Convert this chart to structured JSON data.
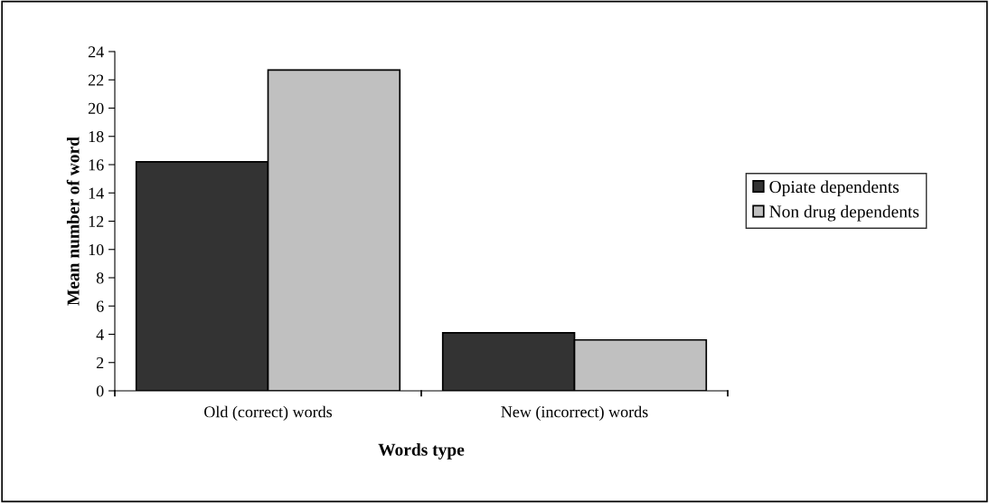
{
  "chart_data": {
    "type": "bar",
    "xlabel": "Words type",
    "ylabel": "Mean number of word",
    "categories": [
      "Old (correct) words",
      "New (incorrect) words"
    ],
    "series": [
      {
        "name": "Opiate dependents",
        "color": "#333333",
        "values": [
          16.2,
          4.1
        ]
      },
      {
        "name": "Non drug dependents",
        "color": "#c0c0c0",
        "values": [
          22.7,
          3.6
        ]
      }
    ],
    "ylim": [
      0,
      24
    ],
    "yticks": [
      0,
      2,
      4,
      6,
      8,
      10,
      12,
      14,
      16,
      18,
      20,
      22,
      24
    ],
    "grid": false,
    "legend": "right"
  }
}
